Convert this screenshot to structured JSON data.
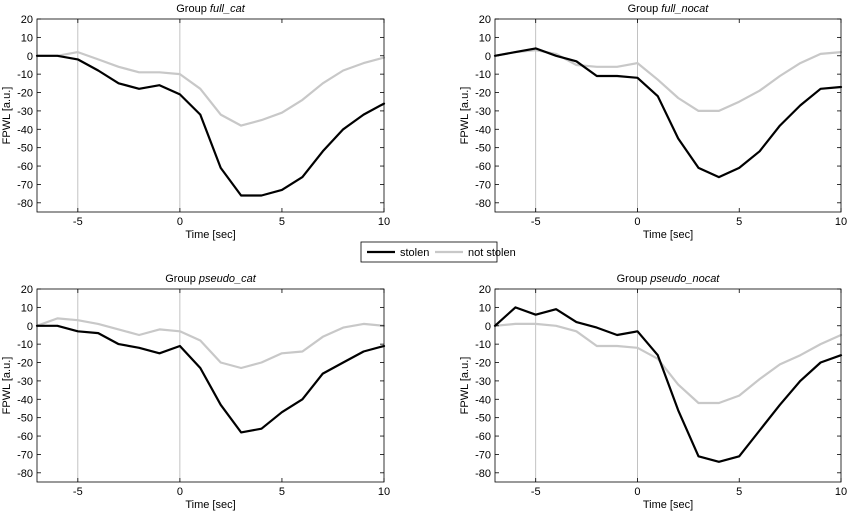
{
  "chart_data": [
    {
      "type": "line",
      "title_prefix": "Group ",
      "title_italic": "full_cat",
      "xlabel": "Time [sec]",
      "ylabel": "FPWL [a.u.]",
      "xlim": [
        -7,
        10
      ],
      "ylim": [
        -85,
        20
      ],
      "xticks": [
        -5,
        0,
        5,
        10
      ],
      "yticks": [
        20,
        10,
        0,
        -10,
        -20,
        -30,
        -40,
        -50,
        -60,
        -70,
        -80
      ],
      "vlines": [
        -5,
        0
      ],
      "x": [
        -7,
        -6,
        -5,
        -4,
        -3,
        -2,
        -1,
        0,
        1,
        2,
        3,
        4,
        5,
        6,
        7,
        8,
        9,
        10
      ],
      "series": [
        {
          "name": "stolen",
          "color": "#000000",
          "values": [
            0,
            0,
            -2,
            -8,
            -15,
            -18,
            -16,
            -21,
            -32,
            -61,
            -76,
            -76,
            -73,
            -66,
            -52,
            -40,
            -32,
            -26
          ]
        },
        {
          "name": "not stolen",
          "color": "#c8c8c8",
          "values": [
            0,
            0,
            2,
            -2,
            -6,
            -9,
            -9,
            -10,
            -18,
            -32,
            -38,
            -35,
            -31,
            -24,
            -15,
            -8,
            -4,
            -1
          ]
        }
      ]
    },
    {
      "type": "line",
      "title_prefix": "Group ",
      "title_italic": "full_nocat",
      "xlabel": "Time [sec]",
      "ylabel": "FPWL [a.u.]",
      "xlim": [
        -7,
        10
      ],
      "ylim": [
        -85,
        20
      ],
      "xticks": [
        -5,
        0,
        5,
        10
      ],
      "yticks": [
        20,
        10,
        0,
        -10,
        -20,
        -30,
        -40,
        -50,
        -60,
        -70,
        -80
      ],
      "vlines": [
        -5,
        0
      ],
      "x": [
        -7,
        -6,
        -5,
        -4,
        -3,
        -2,
        -1,
        0,
        1,
        2,
        3,
        4,
        5,
        6,
        7,
        8,
        9,
        10
      ],
      "series": [
        {
          "name": "stolen",
          "color": "#000000",
          "values": [
            0,
            2,
            4,
            0,
            -3,
            -11,
            -11,
            -12,
            -22,
            -45,
            -61,
            -66,
            -61,
            -52,
            -38,
            -27,
            -18,
            -17
          ]
        },
        {
          "name": "not stolen",
          "color": "#c8c8c8",
          "values": [
            0,
            2,
            3,
            1,
            -5,
            -6,
            -6,
            -4,
            -13,
            -23,
            -30,
            -30,
            -25,
            -19,
            -11,
            -4,
            1,
            2
          ]
        }
      ]
    },
    {
      "type": "line",
      "title_prefix": "Group ",
      "title_italic": "pseudo_cat",
      "xlabel": "Time [sec]",
      "ylabel": "FPWL [a.u.]",
      "xlim": [
        -7,
        10
      ],
      "ylim": [
        -85,
        20
      ],
      "xticks": [
        -5,
        0,
        5,
        10
      ],
      "yticks": [
        20,
        10,
        0,
        -10,
        -20,
        -30,
        -40,
        -50,
        -60,
        -70,
        -80
      ],
      "vlines": [
        -5,
        0
      ],
      "x": [
        -7,
        -6,
        -5,
        -4,
        -3,
        -2,
        -1,
        0,
        1,
        2,
        3,
        4,
        5,
        6,
        7,
        8,
        9,
        10
      ],
      "series": [
        {
          "name": "stolen",
          "color": "#000000",
          "values": [
            0,
            0,
            -3,
            -4,
            -10,
            -12,
            -15,
            -11,
            -23,
            -43,
            -58,
            -56,
            -47,
            -40,
            -26,
            -20,
            -14,
            -11
          ]
        },
        {
          "name": "not stolen",
          "color": "#c8c8c8",
          "values": [
            0,
            4,
            3,
            1,
            -2,
            -5,
            -2,
            -3,
            -8,
            -20,
            -23,
            -20,
            -15,
            -14,
            -6,
            -1,
            1,
            0
          ]
        }
      ]
    },
    {
      "type": "line",
      "title_prefix": "Group ",
      "title_italic": "pseudo_nocat",
      "xlabel": "Time [sec]",
      "ylabel": "FPWL [a.u.]",
      "xlim": [
        -7,
        10
      ],
      "ylim": [
        -85,
        20
      ],
      "xticks": [
        -5,
        0,
        5,
        10
      ],
      "yticks": [
        20,
        10,
        0,
        -10,
        -20,
        -30,
        -40,
        -50,
        -60,
        -70,
        -80
      ],
      "vlines": [
        -5,
        0
      ],
      "x": [
        -7,
        -6,
        -5,
        -4,
        -3,
        -2,
        -1,
        0,
        1,
        2,
        3,
        4,
        5,
        6,
        7,
        8,
        9,
        10
      ],
      "series": [
        {
          "name": "stolen",
          "color": "#000000",
          "values": [
            0,
            10,
            6,
            9,
            2,
            -1,
            -5,
            -3,
            -16,
            -46,
            -71,
            -74,
            -71,
            -57,
            -43,
            -30,
            -20,
            -16
          ]
        },
        {
          "name": "not stolen",
          "color": "#c8c8c8",
          "values": [
            0,
            1,
            1,
            0,
            -3,
            -11,
            -11,
            -12,
            -18,
            -32,
            -42,
            -42,
            -38,
            -29,
            -21,
            -16,
            -10,
            -5
          ]
        }
      ]
    }
  ],
  "legend": {
    "items": [
      {
        "label": "stolen",
        "color": "#000000"
      },
      {
        "label": "not stolen",
        "color": "#c8c8c8"
      }
    ]
  }
}
